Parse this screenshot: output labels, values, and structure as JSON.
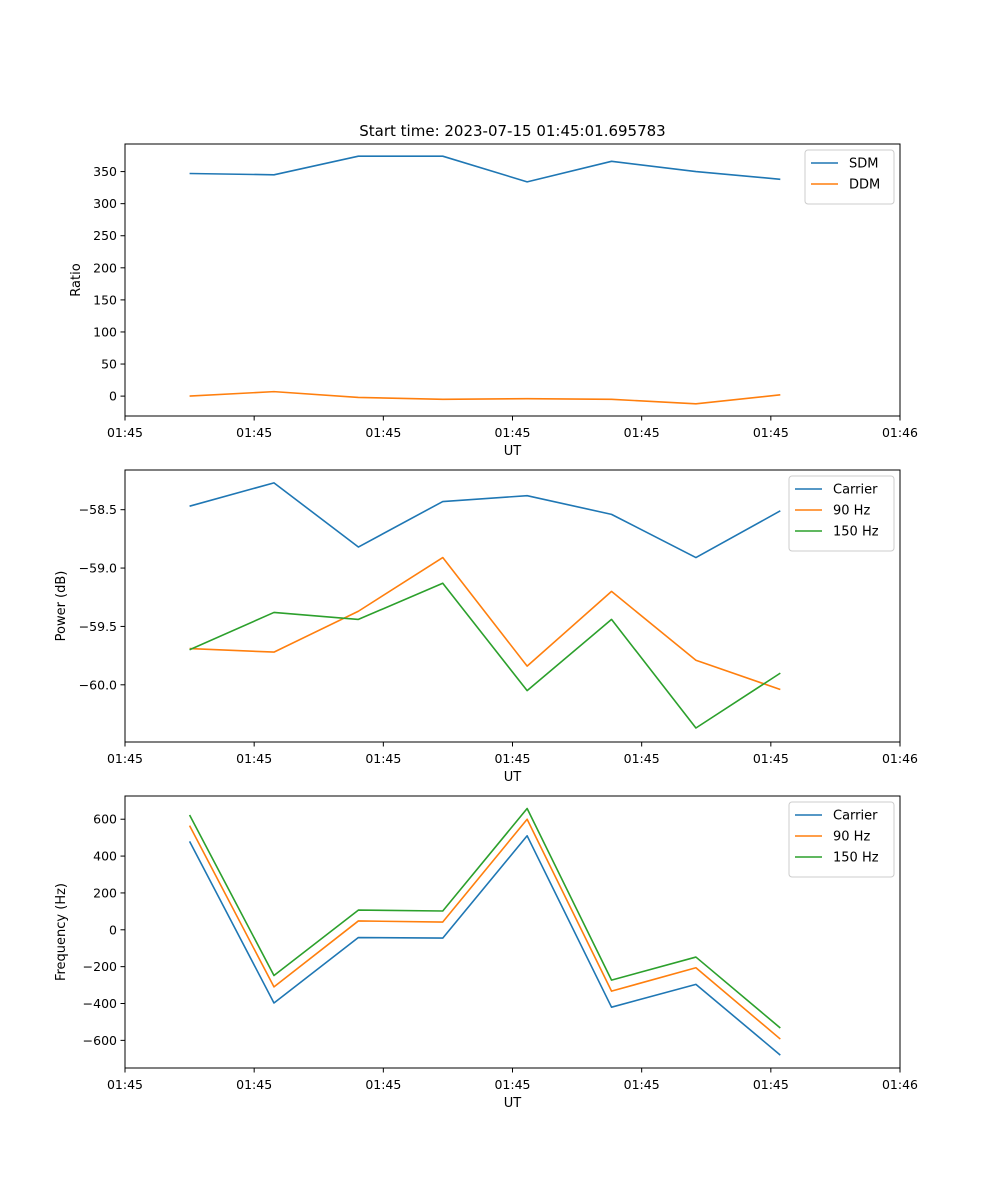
{
  "figure_title": "Start time: 2023-07-15 01:45:01.695783",
  "chart_data": [
    {
      "type": "line",
      "xlabel": "UT",
      "ylabel": "Ratio",
      "xlim": [
        0,
        9
      ],
      "xticks": [
        0,
        1.5,
        3,
        4.5,
        6,
        7.5,
        9
      ],
      "xtick_labels": [
        "01:45",
        "01:45",
        "01:45",
        "01:45",
        "01:45",
        "01:45",
        "01:46"
      ],
      "ylim": [
        -31,
        393
      ],
      "yticks": [
        0,
        50,
        100,
        150,
        200,
        250,
        300,
        350
      ],
      "ytick_labels": [
        "0",
        "50",
        "100",
        "150",
        "200",
        "250",
        "300",
        "350"
      ],
      "legend_position": "top-right",
      "x": [
        0.75,
        1.73,
        2.71,
        3.69,
        4.67,
        5.65,
        6.63,
        7.61
      ],
      "series": [
        {
          "name": "SDM",
          "color": "#1f77b4",
          "values": [
            347,
            345,
            374,
            374,
            334,
            366,
            350,
            338
          ]
        },
        {
          "name": "DDM",
          "color": "#ff7f0e",
          "values": [
            0,
            7,
            -2,
            -5,
            -4,
            -5,
            -12,
            2
          ]
        }
      ]
    },
    {
      "type": "line",
      "xlabel": "UT",
      "ylabel": "Power (dB)",
      "xlim": [
        0,
        9
      ],
      "xticks": [
        0,
        1.5,
        3,
        4.5,
        6,
        7.5,
        9
      ],
      "xtick_labels": [
        "01:45",
        "01:45",
        "01:45",
        "01:45",
        "01:45",
        "01:45",
        "01:46"
      ],
      "ylim": [
        -60.49,
        -58.16
      ],
      "yticks": [
        -60.0,
        -59.5,
        -59.0,
        -58.5
      ],
      "ytick_labels": [
        "−60.0",
        "−59.5",
        "−59.0",
        "−58.5"
      ],
      "legend_position": "top-right",
      "x": [
        0.75,
        1.73,
        2.71,
        3.69,
        4.67,
        5.65,
        6.63,
        7.61
      ],
      "series": [
        {
          "name": "Carrier",
          "color": "#1f77b4",
          "values": [
            -58.47,
            -58.27,
            -58.82,
            -58.43,
            -58.38,
            -58.54,
            -58.91,
            -58.51
          ]
        },
        {
          "name": "90 Hz",
          "color": "#ff7f0e",
          "values": [
            -59.69,
            -59.72,
            -59.37,
            -58.91,
            -59.84,
            -59.2,
            -59.79,
            -60.04
          ]
        },
        {
          "name": "150 Hz",
          "color": "#2ca02c",
          "values": [
            -59.7,
            -59.38,
            -59.44,
            -59.13,
            -60.05,
            -59.44,
            -60.37,
            -59.9
          ]
        }
      ]
    },
    {
      "type": "line",
      "xlabel": "UT",
      "ylabel": "Frequency (Hz)",
      "xlim": [
        0,
        9
      ],
      "xticks": [
        0,
        1.5,
        3,
        4.5,
        6,
        7.5,
        9
      ],
      "xtick_labels": [
        "01:45",
        "01:45",
        "01:45",
        "01:45",
        "01:45",
        "01:45",
        "01:46"
      ],
      "ylim": [
        -750,
        726
      ],
      "yticks": [
        -600,
        -400,
        -200,
        0,
        200,
        400,
        600
      ],
      "ytick_labels": [
        "−600",
        "−400",
        "−200",
        "0",
        "200",
        "400",
        "600"
      ],
      "legend_position": "top-right",
      "x": [
        0.75,
        1.73,
        2.71,
        3.69,
        4.67,
        5.65,
        6.63,
        7.61
      ],
      "series": [
        {
          "name": "Carrier",
          "color": "#1f77b4",
          "values": [
            480,
            -397,
            -42,
            -45,
            510,
            -420,
            -296,
            -680
          ]
        },
        {
          "name": "90 Hz",
          "color": "#ff7f0e",
          "values": [
            565,
            -310,
            48,
            42,
            600,
            -333,
            -206,
            -593
          ]
        },
        {
          "name": "150 Hz",
          "color": "#2ca02c",
          "values": [
            623,
            -248,
            107,
            102,
            658,
            -273,
            -148,
            -533
          ]
        }
      ]
    }
  ]
}
